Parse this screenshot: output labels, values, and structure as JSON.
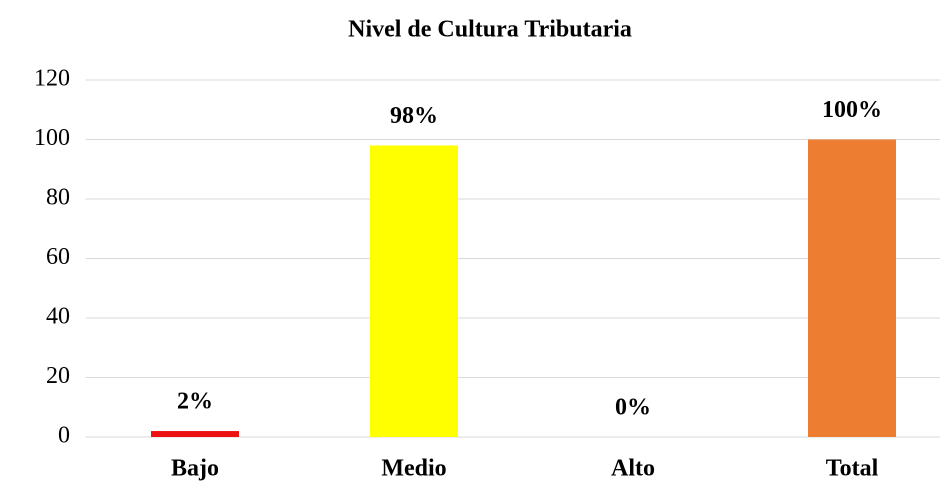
{
  "chart_data": {
    "type": "bar",
    "title": "Nivel de Cultura Tributaria",
    "categories": [
      "Bajo",
      "Medio",
      "Alto",
      "Total"
    ],
    "values": [
      2,
      98,
      0,
      100
    ],
    "value_labels": [
      "2%",
      "98%",
      "0%",
      "100%"
    ],
    "colors": [
      "#ee1111",
      "#ffff00",
      "#a5a5a5",
      "#ed7d31"
    ],
    "ylim": [
      0,
      120
    ],
    "yticks": [
      0,
      20,
      40,
      60,
      80,
      100,
      120
    ],
    "grid": true
  }
}
